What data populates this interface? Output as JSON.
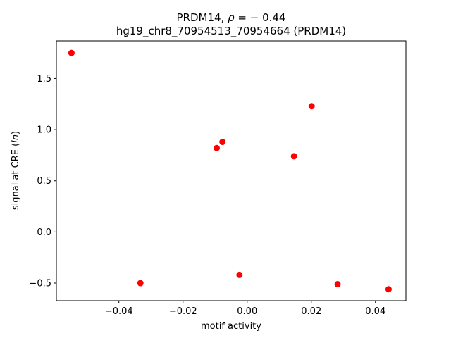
{
  "chart_data": {
    "type": "scatter",
    "title_line1_prefix": "PRDM14, ",
    "title_line1_rho": "ρ",
    "title_line1_suffix": " = − 0.44",
    "title_line2": "hg19_chr8_70954513_70954664 (PRDM14)",
    "xlabel": "motif activity",
    "ylabel_prefix": "signal at CRE (",
    "ylabel_italic": "ln",
    "ylabel_suffix": ")",
    "xlim": [
      -0.0595,
      0.0495
    ],
    "ylim": [
      -0.672,
      1.868
    ],
    "xticks": [
      {
        "value": -0.04,
        "label": "−0.04"
      },
      {
        "value": -0.02,
        "label": "−0.02"
      },
      {
        "value": 0.0,
        "label": "0.00"
      },
      {
        "value": 0.02,
        "label": "0.02"
      },
      {
        "value": 0.04,
        "label": "0.04"
      }
    ],
    "yticks": [
      {
        "value": -0.5,
        "label": "−0.5"
      },
      {
        "value": 0.0,
        "label": "0.0"
      },
      {
        "value": 0.5,
        "label": "0.5"
      },
      {
        "value": 1.0,
        "label": "1.0"
      },
      {
        "value": 1.5,
        "label": "1.5"
      }
    ],
    "grid": false,
    "marker_color": "#ff0000",
    "points": [
      {
        "x": -0.0548,
        "y": 1.75
      },
      {
        "x": -0.0333,
        "y": -0.5
      },
      {
        "x": -0.0095,
        "y": 0.82
      },
      {
        "x": -0.0077,
        "y": 0.88
      },
      {
        "x": -0.0024,
        "y": -0.42
      },
      {
        "x": 0.0146,
        "y": 0.74
      },
      {
        "x": 0.0201,
        "y": 1.23
      },
      {
        "x": 0.0282,
        "y": -0.51
      },
      {
        "x": 0.0441,
        "y": -0.56
      }
    ]
  }
}
